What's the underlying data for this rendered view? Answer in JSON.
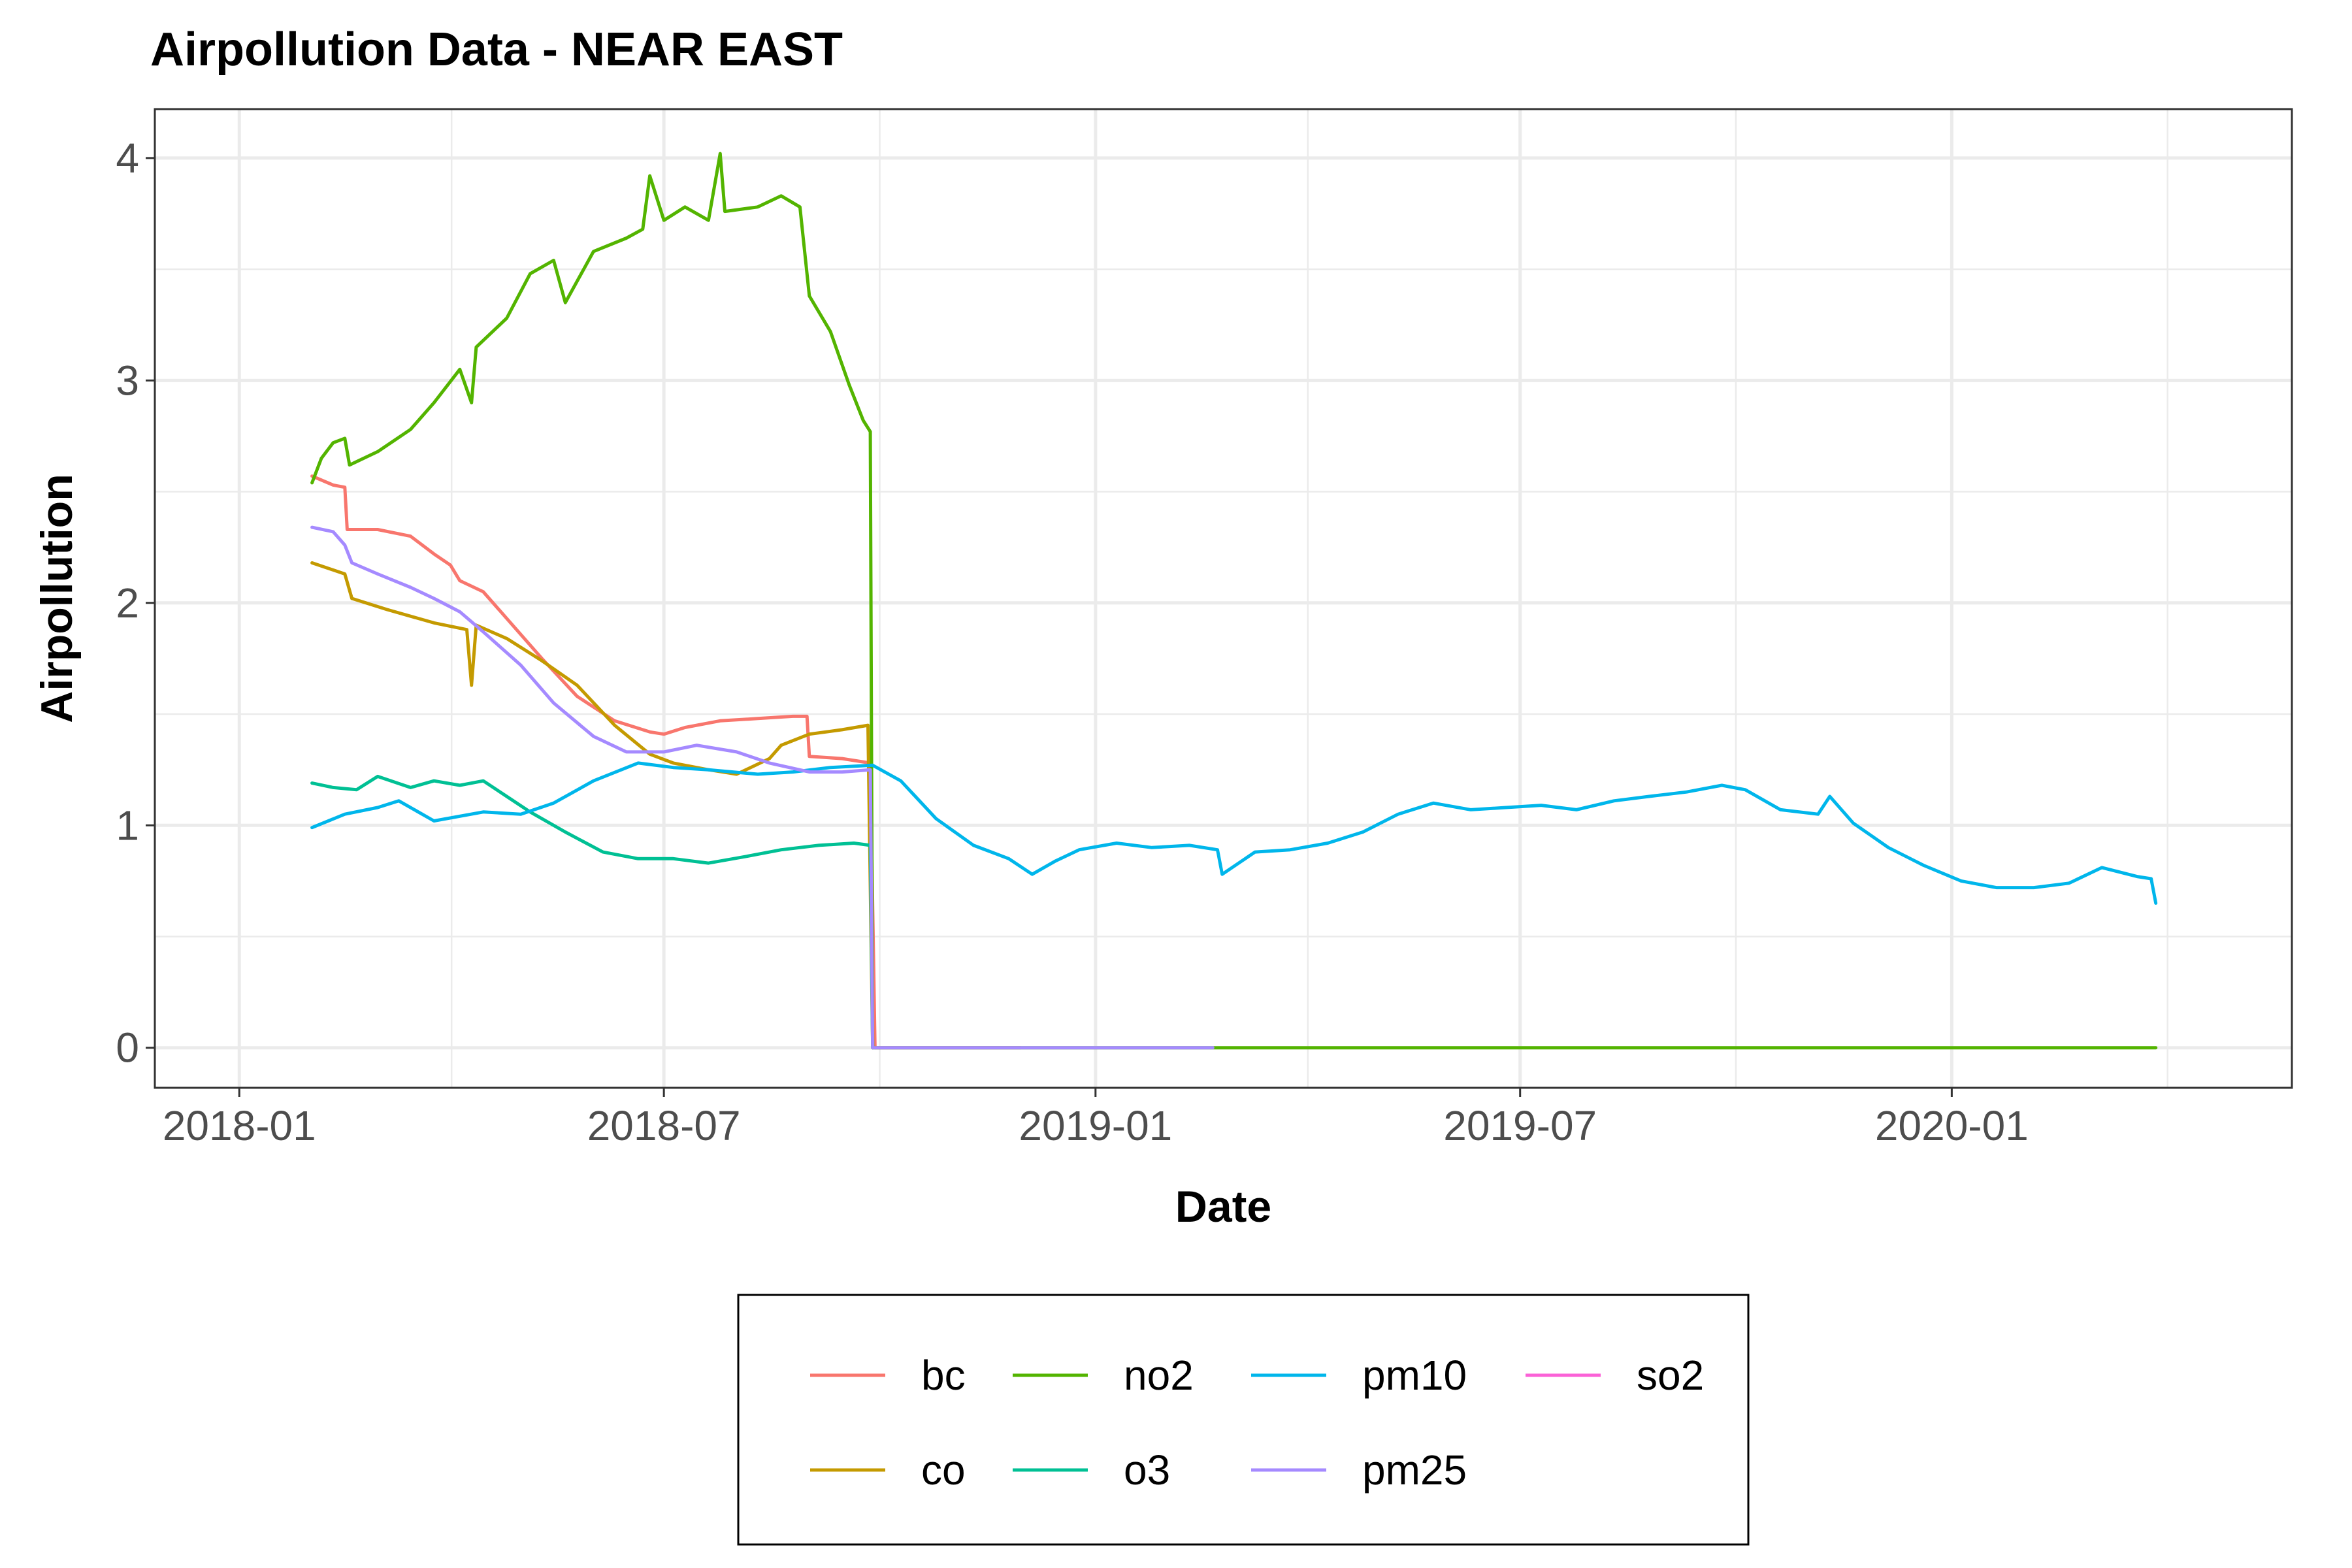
{
  "chart_data": {
    "type": "line",
    "title": "Airpollution Data - NEAR EAST",
    "xlabel": "Date",
    "ylabel": "Airpollution",
    "x_type": "date",
    "xlim": [
      "2017-11-26",
      "2020-05-25"
    ],
    "ylim": [
      -0.18,
      4.22
    ],
    "x_ticks": [
      "2018-01-01",
      "2018-07-01",
      "2019-01-01",
      "2019-07-01",
      "2020-01-01"
    ],
    "x_tick_labels": [
      "2018-01",
      "2018-07",
      "2019-01",
      "2019-07",
      "2020-01"
    ],
    "y_ticks": [
      0,
      1,
      2,
      3,
      4
    ],
    "y_tick_labels": [
      "0",
      "1",
      "2",
      "3",
      "4"
    ],
    "grid": true,
    "legend_position": "bottom",
    "series": [
      {
        "name": "bc",
        "color": "#F8766D",
        "points": [
          [
            "2018-02-01",
            2.57
          ],
          [
            "2018-02-10",
            2.53
          ],
          [
            "2018-02-15",
            2.52
          ],
          [
            "2018-02-16",
            2.33
          ],
          [
            "2018-03-01",
            2.33
          ],
          [
            "2018-03-15",
            2.3
          ],
          [
            "2018-03-25",
            2.22
          ],
          [
            "2018-04-01",
            2.17
          ],
          [
            "2018-04-05",
            2.1
          ],
          [
            "2018-04-15",
            2.05
          ],
          [
            "2018-04-25",
            1.93
          ],
          [
            "2018-05-10",
            1.75
          ],
          [
            "2018-05-25",
            1.58
          ],
          [
            "2018-06-10",
            1.47
          ],
          [
            "2018-06-25",
            1.42
          ],
          [
            "2018-07-01",
            1.41
          ],
          [
            "2018-07-10",
            1.44
          ],
          [
            "2018-07-25",
            1.47
          ],
          [
            "2018-08-10",
            1.48
          ],
          [
            "2018-08-25",
            1.49
          ],
          [
            "2018-08-31",
            1.49
          ],
          [
            "2018-09-01",
            1.31
          ],
          [
            "2018-09-15",
            1.3
          ],
          [
            "2018-09-27",
            1.28
          ],
          [
            "2018-09-29",
            0.0
          ],
          [
            "2018-11-30",
            0.0
          ]
        ]
      },
      {
        "name": "co",
        "color": "#C49A00",
        "points": [
          [
            "2018-02-01",
            2.18
          ],
          [
            "2018-02-15",
            2.13
          ],
          [
            "2018-02-18",
            2.02
          ],
          [
            "2018-03-05",
            1.97
          ],
          [
            "2018-03-25",
            1.91
          ],
          [
            "2018-04-08",
            1.88
          ],
          [
            "2018-04-10",
            1.63
          ],
          [
            "2018-04-12",
            1.9
          ],
          [
            "2018-04-25",
            1.84
          ],
          [
            "2018-05-10",
            1.74
          ],
          [
            "2018-05-25",
            1.63
          ],
          [
            "2018-06-10",
            1.45
          ],
          [
            "2018-06-25",
            1.32
          ],
          [
            "2018-07-05",
            1.28
          ],
          [
            "2018-07-20",
            1.25
          ],
          [
            "2018-08-01",
            1.23
          ],
          [
            "2018-08-15",
            1.3
          ],
          [
            "2018-08-20",
            1.36
          ],
          [
            "2018-09-01",
            1.41
          ],
          [
            "2018-09-15",
            1.43
          ],
          [
            "2018-09-26",
            1.45
          ],
          [
            "2018-09-28",
            0.0
          ]
        ]
      },
      {
        "name": "no2",
        "color": "#53B400",
        "points": [
          [
            "2018-02-01",
            2.54
          ],
          [
            "2018-02-05",
            2.65
          ],
          [
            "2018-02-10",
            2.72
          ],
          [
            "2018-02-15",
            2.74
          ],
          [
            "2018-02-17",
            2.62
          ],
          [
            "2018-03-01",
            2.68
          ],
          [
            "2018-03-15",
            2.78
          ],
          [
            "2018-03-25",
            2.9
          ],
          [
            "2018-04-05",
            3.05
          ],
          [
            "2018-04-10",
            2.9
          ],
          [
            "2018-04-12",
            3.15
          ],
          [
            "2018-04-25",
            3.28
          ],
          [
            "2018-05-05",
            3.48
          ],
          [
            "2018-05-15",
            3.54
          ],
          [
            "2018-05-20",
            3.35
          ],
          [
            "2018-06-01",
            3.58
          ],
          [
            "2018-06-15",
            3.64
          ],
          [
            "2018-06-22",
            3.68
          ],
          [
            "2018-06-25",
            3.92
          ],
          [
            "2018-07-01",
            3.72
          ],
          [
            "2018-07-10",
            3.78
          ],
          [
            "2018-07-20",
            3.72
          ],
          [
            "2018-07-25",
            4.02
          ],
          [
            "2018-07-27",
            3.76
          ],
          [
            "2018-08-10",
            3.78
          ],
          [
            "2018-08-20",
            3.83
          ],
          [
            "2018-08-28",
            3.78
          ],
          [
            "2018-09-01",
            3.38
          ],
          [
            "2018-09-10",
            3.22
          ],
          [
            "2018-09-18",
            2.98
          ],
          [
            "2018-09-24",
            2.82
          ],
          [
            "2018-09-27",
            2.77
          ],
          [
            "2018-09-28",
            0.0
          ],
          [
            "2020-03-28",
            0.0
          ]
        ]
      },
      {
        "name": "o3",
        "color": "#00C094",
        "points": [
          [
            "2018-02-01",
            1.19
          ],
          [
            "2018-02-10",
            1.17
          ],
          [
            "2018-02-20",
            1.16
          ],
          [
            "2018-03-01",
            1.22
          ],
          [
            "2018-03-15",
            1.17
          ],
          [
            "2018-03-25",
            1.2
          ],
          [
            "2018-04-05",
            1.18
          ],
          [
            "2018-04-15",
            1.2
          ],
          [
            "2018-04-25",
            1.13
          ],
          [
            "2018-05-05",
            1.06
          ],
          [
            "2018-05-20",
            0.97
          ],
          [
            "2018-06-05",
            0.88
          ],
          [
            "2018-06-20",
            0.85
          ],
          [
            "2018-07-05",
            0.85
          ],
          [
            "2018-07-20",
            0.83
          ],
          [
            "2018-08-05",
            0.86
          ],
          [
            "2018-08-20",
            0.89
          ],
          [
            "2018-09-05",
            0.91
          ],
          [
            "2018-09-20",
            0.92
          ],
          [
            "2018-09-27",
            0.91
          ],
          [
            "2018-09-28",
            0.0
          ]
        ]
      },
      {
        "name": "pm10",
        "color": "#00B6EB",
        "points": [
          [
            "2018-02-01",
            0.99
          ],
          [
            "2018-02-15",
            1.05
          ],
          [
            "2018-03-01",
            1.08
          ],
          [
            "2018-03-10",
            1.11
          ],
          [
            "2018-03-25",
            1.02
          ],
          [
            "2018-04-15",
            1.06
          ],
          [
            "2018-05-01",
            1.05
          ],
          [
            "2018-05-15",
            1.1
          ],
          [
            "2018-06-01",
            1.2
          ],
          [
            "2018-06-20",
            1.28
          ],
          [
            "2018-07-05",
            1.26
          ],
          [
            "2018-07-20",
            1.25
          ],
          [
            "2018-08-10",
            1.23
          ],
          [
            "2018-08-25",
            1.24
          ],
          [
            "2018-09-10",
            1.26
          ],
          [
            "2018-09-28",
            1.27
          ],
          [
            "2018-10-10",
            1.2
          ],
          [
            "2018-10-25",
            1.03
          ],
          [
            "2018-11-10",
            0.91
          ],
          [
            "2018-11-25",
            0.85
          ],
          [
            "2018-12-05",
            0.78
          ],
          [
            "2018-12-15",
            0.84
          ],
          [
            "2018-12-25",
            0.89
          ],
          [
            "2019-01-10",
            0.92
          ],
          [
            "2019-01-25",
            0.9
          ],
          [
            "2019-02-10",
            0.91
          ],
          [
            "2019-02-22",
            0.89
          ],
          [
            "2019-02-24",
            0.78
          ],
          [
            "2019-03-10",
            0.88
          ],
          [
            "2019-03-25",
            0.89
          ],
          [
            "2019-04-10",
            0.92
          ],
          [
            "2019-04-25",
            0.97
          ],
          [
            "2019-05-10",
            1.05
          ],
          [
            "2019-05-25",
            1.1
          ],
          [
            "2019-06-10",
            1.07
          ],
          [
            "2019-06-25",
            1.08
          ],
          [
            "2019-07-10",
            1.09
          ],
          [
            "2019-07-25",
            1.07
          ],
          [
            "2019-08-10",
            1.11
          ],
          [
            "2019-08-25",
            1.13
          ],
          [
            "2019-09-10",
            1.15
          ],
          [
            "2019-09-25",
            1.18
          ],
          [
            "2019-10-05",
            1.16
          ],
          [
            "2019-10-20",
            1.07
          ],
          [
            "2019-11-05",
            1.05
          ],
          [
            "2019-11-10",
            1.13
          ],
          [
            "2019-11-20",
            1.01
          ],
          [
            "2019-12-05",
            0.9
          ],
          [
            "2019-12-20",
            0.82
          ],
          [
            "2020-01-05",
            0.75
          ],
          [
            "2020-01-20",
            0.72
          ],
          [
            "2020-02-05",
            0.72
          ],
          [
            "2020-02-20",
            0.74
          ],
          [
            "2020-03-05",
            0.81
          ],
          [
            "2020-03-20",
            0.77
          ],
          [
            "2020-03-26",
            0.76
          ],
          [
            "2020-03-28",
            0.65
          ]
        ]
      },
      {
        "name": "pm25",
        "color": "#A58AFF",
        "points": [
          [
            "2018-02-01",
            2.34
          ],
          [
            "2018-02-10",
            2.32
          ],
          [
            "2018-02-15",
            2.26
          ],
          [
            "2018-02-18",
            2.18
          ],
          [
            "2018-03-01",
            2.13
          ],
          [
            "2018-03-15",
            2.07
          ],
          [
            "2018-03-25",
            2.02
          ],
          [
            "2018-04-05",
            1.96
          ],
          [
            "2018-04-15",
            1.87
          ],
          [
            "2018-05-01",
            1.72
          ],
          [
            "2018-05-15",
            1.55
          ],
          [
            "2018-06-01",
            1.4
          ],
          [
            "2018-06-15",
            1.33
          ],
          [
            "2018-07-01",
            1.33
          ],
          [
            "2018-07-15",
            1.36
          ],
          [
            "2018-08-01",
            1.33
          ],
          [
            "2018-08-15",
            1.28
          ],
          [
            "2018-09-01",
            1.24
          ],
          [
            "2018-09-15",
            1.24
          ],
          [
            "2018-09-27",
            1.25
          ],
          [
            "2018-09-28",
            0.0
          ],
          [
            "2019-02-20",
            0.0
          ]
        ]
      },
      {
        "name": "so2",
        "color": "#FB61D7",
        "points": []
      }
    ]
  }
}
